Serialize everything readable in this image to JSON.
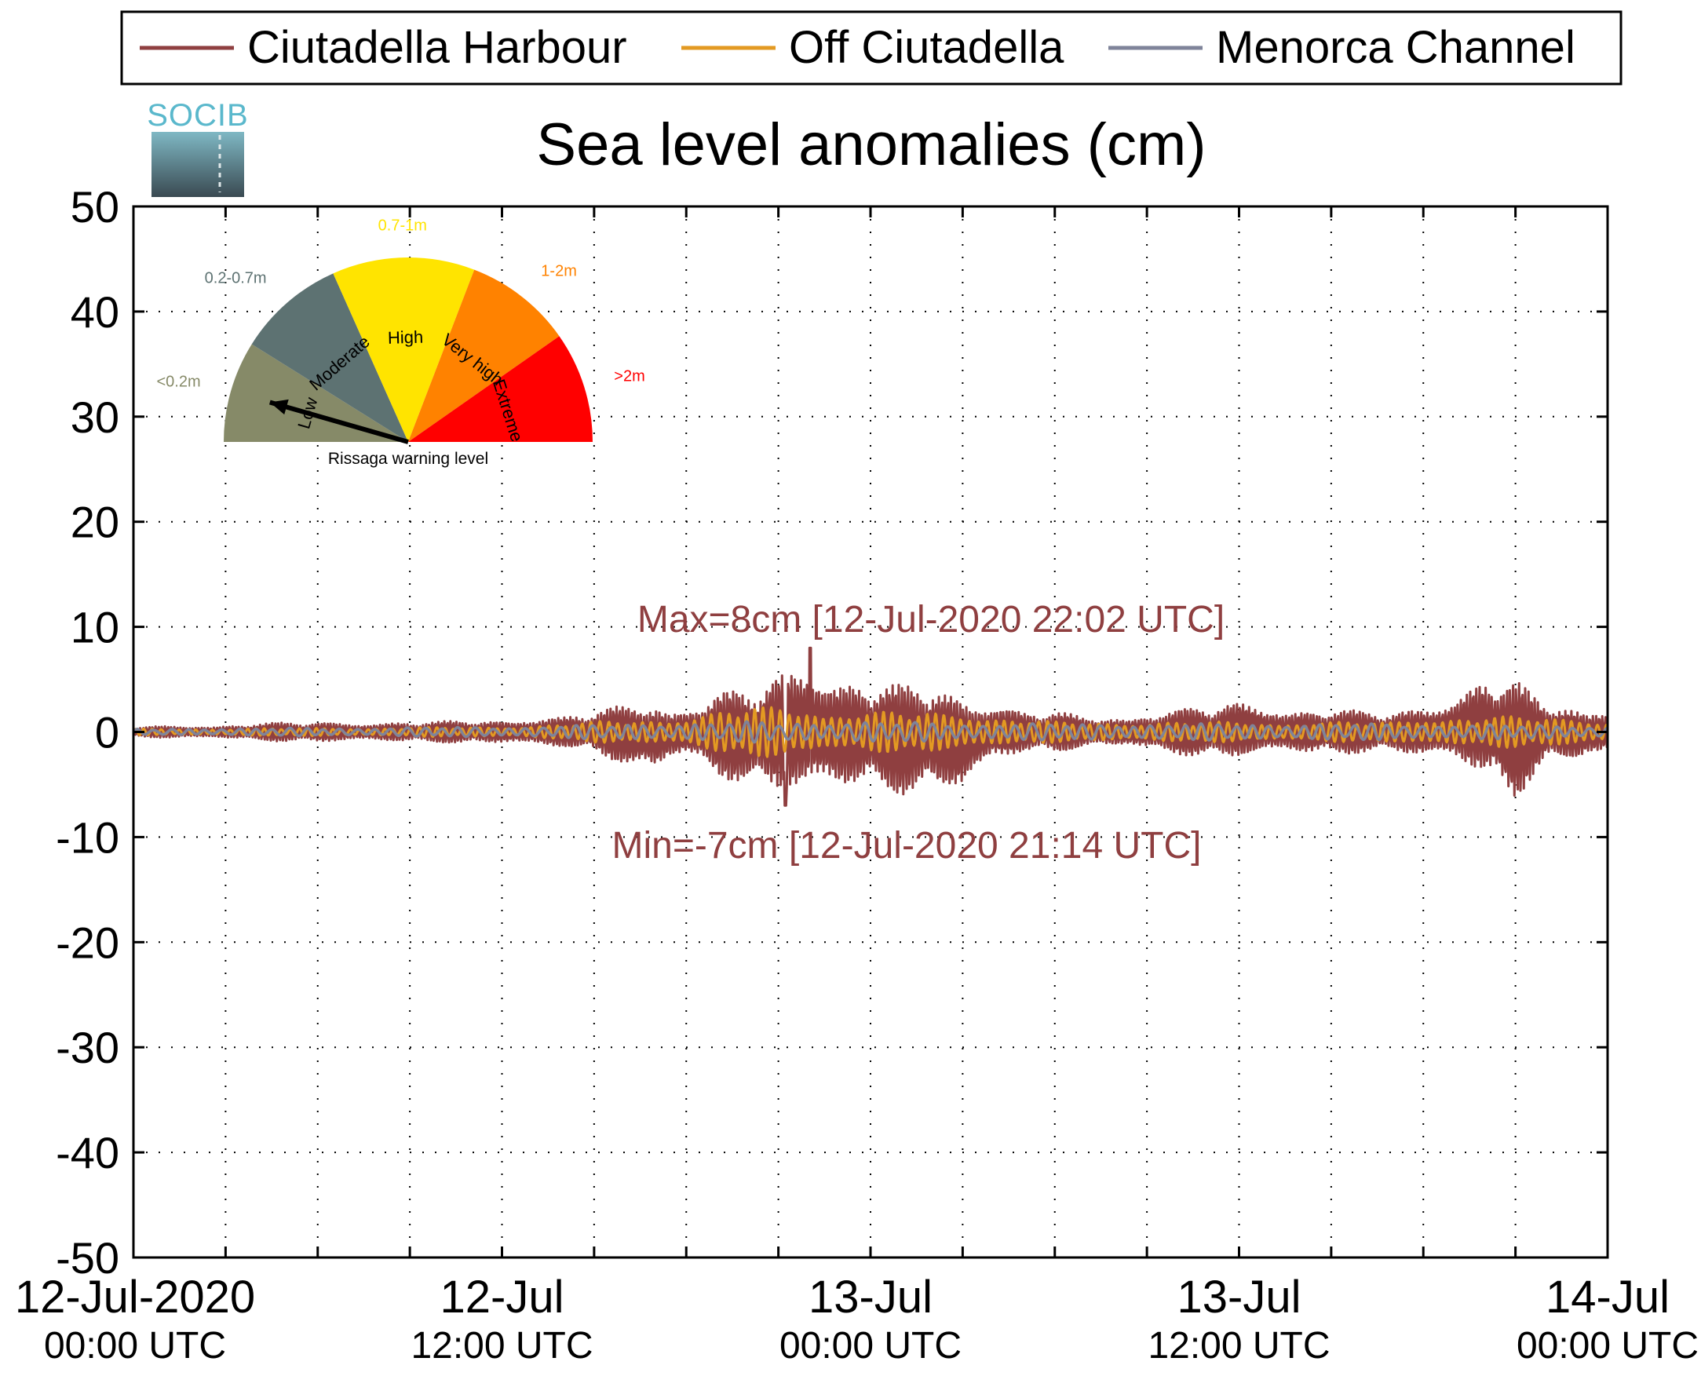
{
  "colors": {
    "harbour": "#8f3f40",
    "off": "#e39a22",
    "channel": "#7f849a",
    "annotation": "#8f3f40",
    "low": "#868a68",
    "moderate": "#5d7272",
    "high": "#ffe400",
    "very_high": "#ff8200",
    "extreme": "#ff0000",
    "logo_text": "#5ab8cc"
  },
  "logo": {
    "text": "SOCIB"
  },
  "chart_data": {
    "type": "line",
    "title": "Sea level anomalies (cm)",
    "ylim": [
      -50,
      50
    ],
    "y_ticks": [
      50,
      40,
      30,
      20,
      10,
      0,
      -10,
      -20,
      -30,
      -40,
      -50
    ],
    "x_range_hours": [
      0,
      48
    ],
    "x_tick_labels": [
      {
        "hour": 0,
        "line1": "12-Jul-2020",
        "line2": "00:00 UTC"
      },
      {
        "hour": 12,
        "line1": "12-Jul",
        "line2": "12:00 UTC"
      },
      {
        "hour": 24,
        "line1": "13-Jul",
        "line2": "00:00 UTC"
      },
      {
        "hour": 36,
        "line1": "13-Jul",
        "line2": "12:00 UTC"
      },
      {
        "hour": 48,
        "line1": "14-Jul",
        "line2": "00:00 UTC"
      }
    ],
    "grid": true,
    "legend_position": "top",
    "legend": [
      "Ciutadella Harbour",
      "Off Ciutadella",
      "Menorca Channel"
    ],
    "series": [
      {
        "name": "Ciutadella Harbour",
        "color_key": "harbour",
        "envelope": {
          "hours": [
            0,
            6,
            10,
            13,
            14,
            15,
            17,
            18,
            19,
            20,
            21,
            22,
            23,
            24,
            25,
            26,
            27,
            28,
            29,
            30,
            31,
            33,
            35,
            36,
            38,
            40,
            41,
            42,
            43,
            44,
            45,
            46,
            47,
            48
          ],
          "upper": [
            0.5,
            1,
            1,
            1.5,
            1.5,
            2,
            3.5,
            2.5,
            4,
            4,
            6,
            7.5,
            6,
            5,
            4.5,
            5,
            4.5,
            3,
            2,
            2,
            1.5,
            2,
            2.5,
            3,
            2.5,
            2,
            2,
            3,
            3.5,
            5.5,
            5,
            3,
            3,
            2.5
          ],
          "lower": [
            -0.5,
            -1,
            -1,
            -1.5,
            -1.5,
            -2,
            -4.5,
            -2.5,
            -4.5,
            -5,
            -6,
            -7,
            -6.5,
            -5.5,
            -6,
            -6,
            -6.5,
            -3,
            -2,
            -2,
            -1.5,
            -2,
            -2.5,
            -2.5,
            -2.5,
            -2,
            -2,
            -3,
            -3,
            -4.5,
            -6.5,
            -3,
            -3.5,
            -2.5
          ]
        },
        "peak": {
          "hour": 22.03,
          "value": 8
        },
        "trough": {
          "hour": 21.23,
          "value": -7
        }
      },
      {
        "name": "Off Ciutadella",
        "color_key": "off",
        "envelope": {
          "hours": [
            0,
            12,
            15,
            18,
            19,
            20,
            21,
            22,
            23,
            24,
            25,
            26,
            27,
            28,
            30,
            34,
            38,
            40,
            41,
            42,
            43,
            44,
            45,
            46,
            47,
            48
          ],
          "upper": [
            0.3,
            0.5,
            1,
            1.5,
            2,
            2.5,
            2.5,
            2.5,
            2,
            2,
            2,
            2,
            2,
            1.5,
            1,
            1,
            1,
            1,
            1,
            1.5,
            1.5,
            1.5,
            1.5,
            1.5,
            1.5,
            1
          ],
          "lower": [
            -0.3,
            -0.5,
            -1,
            -1.5,
            -2,
            -2.5,
            -2.5,
            -2.5,
            -2,
            -2,
            -2,
            -2,
            -2,
            -1.5,
            -1,
            -1,
            -1,
            -1,
            -1,
            -1.5,
            -1.5,
            -1.5,
            -1.5,
            -1.5,
            -1.5,
            -1
          ]
        }
      },
      {
        "name": "Menorca Channel",
        "color_key": "channel",
        "envelope": {
          "hours": [
            0,
            12,
            20,
            24,
            30,
            36,
            42,
            48
          ],
          "upper": [
            0.3,
            0.5,
            1,
            1,
            0.8,
            0.8,
            0.8,
            0.6
          ],
          "lower": [
            -0.3,
            -0.5,
            -1,
            -1,
            -0.8,
            -0.8,
            -0.8,
            -0.6
          ]
        }
      }
    ],
    "annotations": {
      "max": "Max=8cm [12-Jul-2020 22:02 UTC]",
      "min": "Min=-7cm [12-Jul-2020 21:14 UTC]"
    }
  },
  "gauge": {
    "caption": "Rissaga warning level",
    "pointer_level": "low",
    "segments": [
      {
        "key": "low",
        "label": "Low",
        "range": "<0.2m",
        "color_key": "low"
      },
      {
        "key": "moderate",
        "label": "Moderate",
        "range": "0.2-0.7m",
        "color_key": "moderate"
      },
      {
        "key": "high",
        "label": "High",
        "range": "0.7-1m",
        "color_key": "high"
      },
      {
        "key": "very_high",
        "label": "Very high",
        "range": "1-2m",
        "color_key": "very_high"
      },
      {
        "key": "extreme",
        "label": "Extreme",
        "range": ">2m",
        "color_key": "extreme"
      }
    ]
  }
}
